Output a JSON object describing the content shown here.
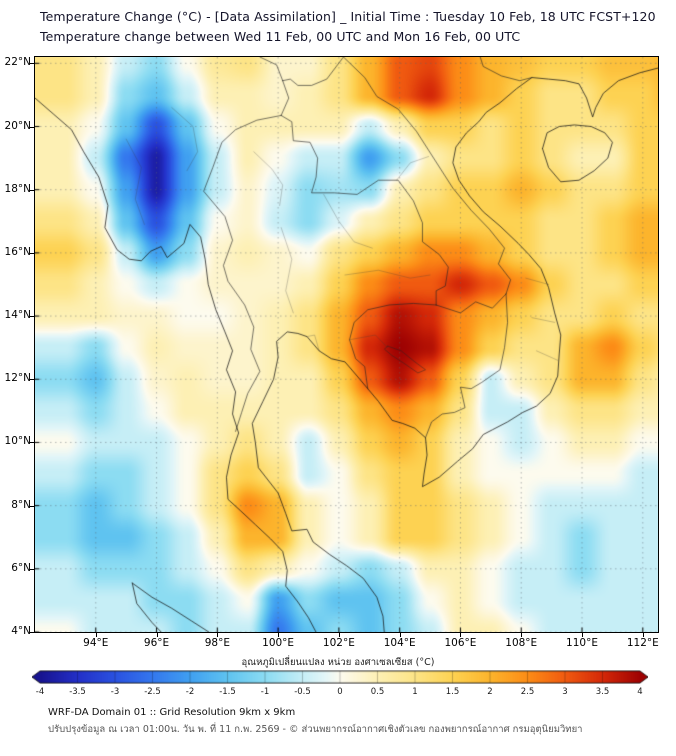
{
  "header": {
    "title_line1": "Temperature Change (°C) - [Data Assimilation] _ Initial Time : Tuesday 10 Feb, 18 UTC FCST+120",
    "title_line2": "Temperature change between Wed 11 Feb, 00 UTC and Mon 16 Feb, 00 UTC"
  },
  "map": {
    "x_tick_labels": [
      "94°E",
      "96°E",
      "98°E",
      "100°E",
      "102°E",
      "104°E",
      "106°E",
      "108°E",
      "110°E",
      "112°E"
    ],
    "y_tick_labels": [
      "22°N",
      "20°N",
      "18°N",
      "16°N",
      "14°N",
      "12°N",
      "10°N",
      "8°N",
      "6°N",
      "4°N"
    ]
  },
  "colorbar": {
    "title": "อุณหภูมิเปลี่ยนแปลง หน่วย องศาเซลเซียส (°C)",
    "tick_labels": [
      "-4",
      "-3.5",
      "-3",
      "-2.5",
      "-2",
      "-1.5",
      "-1",
      "-0.5",
      "0",
      "0.5",
      "1",
      "1.5",
      "2",
      "2.5",
      "3",
      "3.5",
      "4"
    ],
    "min": -4,
    "max": 4
  },
  "footer": {
    "line1": "WRF-DA Domain 01 :: Grid Resolution 9km x 9km",
    "line2": "ปรับปรุงข้อมูล ณ เวลา 01:00น. วัน พ. ที่ 11 ก.พ. 2569 - © ส่วนพยากรณ์อากาศเชิงตัวเลข กองพยากรณ์อากาศ กรมอุตุนิยมวิทยา"
  },
  "chart_data": {
    "type": "heatmap",
    "title": "Temperature change between Wed 11 Feb, 00 UTC and Mon 16 Feb, 00 UTC",
    "units": "°C",
    "lon_range": [
      92.0,
      112.5
    ],
    "lat_range": [
      4.0,
      22.2
    ],
    "x_tick_values": [
      94,
      96,
      98,
      100,
      102,
      104,
      106,
      108,
      110,
      112
    ],
    "y_tick_values": [
      22,
      20,
      18,
      16,
      14,
      12,
      10,
      8,
      6,
      4
    ],
    "colorbar_range": [
      -4,
      4
    ],
    "colormap": [
      [
        -4.0,
        "#181490"
      ],
      [
        -3.5,
        "#2330c8"
      ],
      [
        -3.0,
        "#2a52e0"
      ],
      [
        -2.5,
        "#3478ee"
      ],
      [
        -2.0,
        "#40a0f0"
      ],
      [
        -1.5,
        "#5fc3f0"
      ],
      [
        -1.0,
        "#8cdcf2"
      ],
      [
        -0.5,
        "#c6eef6"
      ],
      [
        -0.2,
        "#e4f6f8"
      ],
      [
        0.0,
        "#fdfbee"
      ],
      [
        0.2,
        "#fdf6d8"
      ],
      [
        0.5,
        "#fdf0b4"
      ],
      [
        1.0,
        "#fde486"
      ],
      [
        1.5,
        "#fdd252"
      ],
      [
        2.0,
        "#fcb42c"
      ],
      [
        2.5,
        "#fc8c16"
      ],
      [
        3.0,
        "#f05a10"
      ],
      [
        3.5,
        "#d42808"
      ],
      [
        4.0,
        "#9e0202"
      ]
    ],
    "grid": {
      "lon_start": 92,
      "lon_step": 1,
      "ncols": 22,
      "lat_start": 23,
      "lat_step": -1,
      "nrows": 21,
      "values": [
        [
          0.5,
          0.5,
          0.5,
          0,
          -0.5,
          0.5,
          1,
          1,
          0.5,
          0.5,
          1,
          1.5,
          2.5,
          3,
          2.5,
          1.5,
          2,
          2,
          1,
          1,
          1.5,
          1.5
        ],
        [
          1,
          1,
          0.5,
          -0.5,
          -1,
          0,
          0.8,
          1,
          0.3,
          0.3,
          1,
          2,
          3,
          3.2,
          2.5,
          2,
          1.8,
          1.5,
          1.5,
          1.8,
          1.8,
          2
        ],
        [
          1,
          1,
          0.5,
          -1,
          -1.5,
          -0.5,
          0.5,
          0.5,
          0.3,
          0.5,
          1,
          2,
          3,
          3.5,
          2.5,
          2,
          1.5,
          1,
          1,
          1.5,
          1.5,
          2
        ],
        [
          0.5,
          0.5,
          0,
          -1.5,
          -3,
          -1.5,
          0,
          0.5,
          0.5,
          0.5,
          0.5,
          -0.5,
          0.5,
          1.5,
          1.5,
          1,
          1.5,
          1,
          1,
          1,
          1.5,
          1.5
        ],
        [
          0.5,
          0.5,
          -0.5,
          -2.5,
          -3.8,
          -2,
          -0.5,
          0.5,
          0,
          -0.5,
          -0.5,
          -2,
          -1,
          0.5,
          1,
          1,
          1.5,
          1,
          0.5,
          0.5,
          1.5,
          1.5
        ],
        [
          0.5,
          0.5,
          0,
          -2,
          -3.8,
          -2,
          -0.5,
          0.3,
          -0.3,
          -1,
          -0.8,
          -1,
          0.5,
          1,
          1.5,
          1.5,
          2,
          1.5,
          1,
          1,
          1.5,
          1.5
        ],
        [
          1,
          1,
          0.5,
          -1.5,
          -3,
          -1.5,
          0,
          0.3,
          -0.5,
          -1,
          -0.3,
          0.5,
          1,
          1.5,
          1.5,
          1.5,
          1.5,
          1,
          1,
          1.5,
          2,
          2
        ],
        [
          1.5,
          1.5,
          1,
          -0.5,
          -2,
          -1,
          0.3,
          0.5,
          0.3,
          0,
          1,
          1.5,
          2,
          2.5,
          2.5,
          2,
          1.5,
          1,
          1,
          1.5,
          2,
          2
        ],
        [
          1,
          1,
          0.5,
          0,
          -0.5,
          0,
          0.3,
          0.3,
          0.3,
          0.5,
          1.5,
          2.5,
          3,
          3,
          3.5,
          3,
          2.5,
          1.5,
          1,
          1,
          1.5,
          1.5
        ],
        [
          0.5,
          0.5,
          0.5,
          0.3,
          0.3,
          0,
          0,
          0.3,
          0.5,
          1,
          2,
          3,
          3.8,
          3.5,
          2.5,
          2,
          1.5,
          1,
          1,
          1.5,
          1,
          1
        ],
        [
          -0.5,
          -0.5,
          -1,
          0,
          0.5,
          0.3,
          0.3,
          0.3,
          0.5,
          1,
          2,
          3.5,
          4,
          3.8,
          2.5,
          1.5,
          1,
          1,
          2,
          2.5,
          1.5,
          1
        ],
        [
          -1,
          -1,
          -1.5,
          -0.5,
          0.3,
          0.5,
          0.3,
          0.3,
          0.5,
          0.5,
          1.5,
          3,
          3.8,
          3,
          1.5,
          -0.5,
          0.5,
          1,
          2,
          2,
          1,
          0.5
        ],
        [
          -0.5,
          -0.5,
          -1,
          -0.5,
          0,
          0.5,
          0.5,
          0.5,
          0.5,
          0.5,
          1,
          2,
          2.5,
          2,
          1,
          -0.5,
          -0.5,
          0.5,
          1,
          1,
          0.5,
          0.5
        ],
        [
          0,
          0,
          -0.5,
          -0.5,
          -0.5,
          0,
          0.5,
          1,
          0.5,
          -0.5,
          0.5,
          1.5,
          2,
          1.5,
          0.5,
          0,
          -0.5,
          0,
          0.5,
          0.5,
          0,
          0
        ],
        [
          -0.5,
          -0.5,
          -1,
          -1,
          -0.5,
          0,
          1,
          1.5,
          1,
          -0.5,
          0,
          1,
          1.5,
          1.5,
          0.5,
          0,
          0,
          0,
          0,
          0,
          -0.5,
          -0.5
        ],
        [
          -1,
          -1,
          -1.5,
          -1,
          -0.5,
          0,
          1,
          2.5,
          2,
          0.5,
          0,
          0.5,
          1.5,
          1.5,
          1,
          0.5,
          0,
          -0.5,
          -0.5,
          -0.5,
          -0.5,
          -0.5
        ],
        [
          -1,
          -1,
          -1.5,
          -1.5,
          -1,
          -0.5,
          0.5,
          2,
          2,
          0.5,
          0,
          0.5,
          1.5,
          1.5,
          1,
          0.5,
          0,
          -0.5,
          -1,
          -0.5,
          -0.5,
          -0.5
        ],
        [
          -0.5,
          -0.5,
          -1,
          -1,
          -1,
          -0.5,
          0,
          1,
          0.5,
          0,
          -0.5,
          -1,
          -0.5,
          0.5,
          0.5,
          0,
          -0.5,
          -0.5,
          -1,
          -0.5,
          -0.5,
          -0.5
        ],
        [
          -0.5,
          -0.5,
          -0.5,
          -0.5,
          -1,
          -1,
          -0.5,
          0,
          -2,
          -1,
          -1.5,
          -1.5,
          -1,
          0,
          0.5,
          0,
          -0.5,
          -0.5,
          -0.5,
          -0.5,
          -0.5,
          -0.5
        ],
        [
          0,
          0,
          -0.5,
          -0.5,
          -0.5,
          -1,
          -0.5,
          -0.5,
          -2.5,
          -1.5,
          -1,
          -1.5,
          -1,
          -0.5,
          0.5,
          0.5,
          0,
          -0.5,
          -0.5,
          -0.5,
          -0.5,
          -0.5
        ],
        [
          0,
          0,
          -0.5,
          -0.5,
          -0.5,
          -1,
          -0.5,
          -0.5,
          -2.5,
          -1.5,
          -1,
          -1.5,
          -1,
          -0.5,
          0.5,
          0.5,
          0,
          -0.5,
          -0.5,
          -0.5,
          -0.5,
          -0.5
        ]
      ]
    }
  }
}
